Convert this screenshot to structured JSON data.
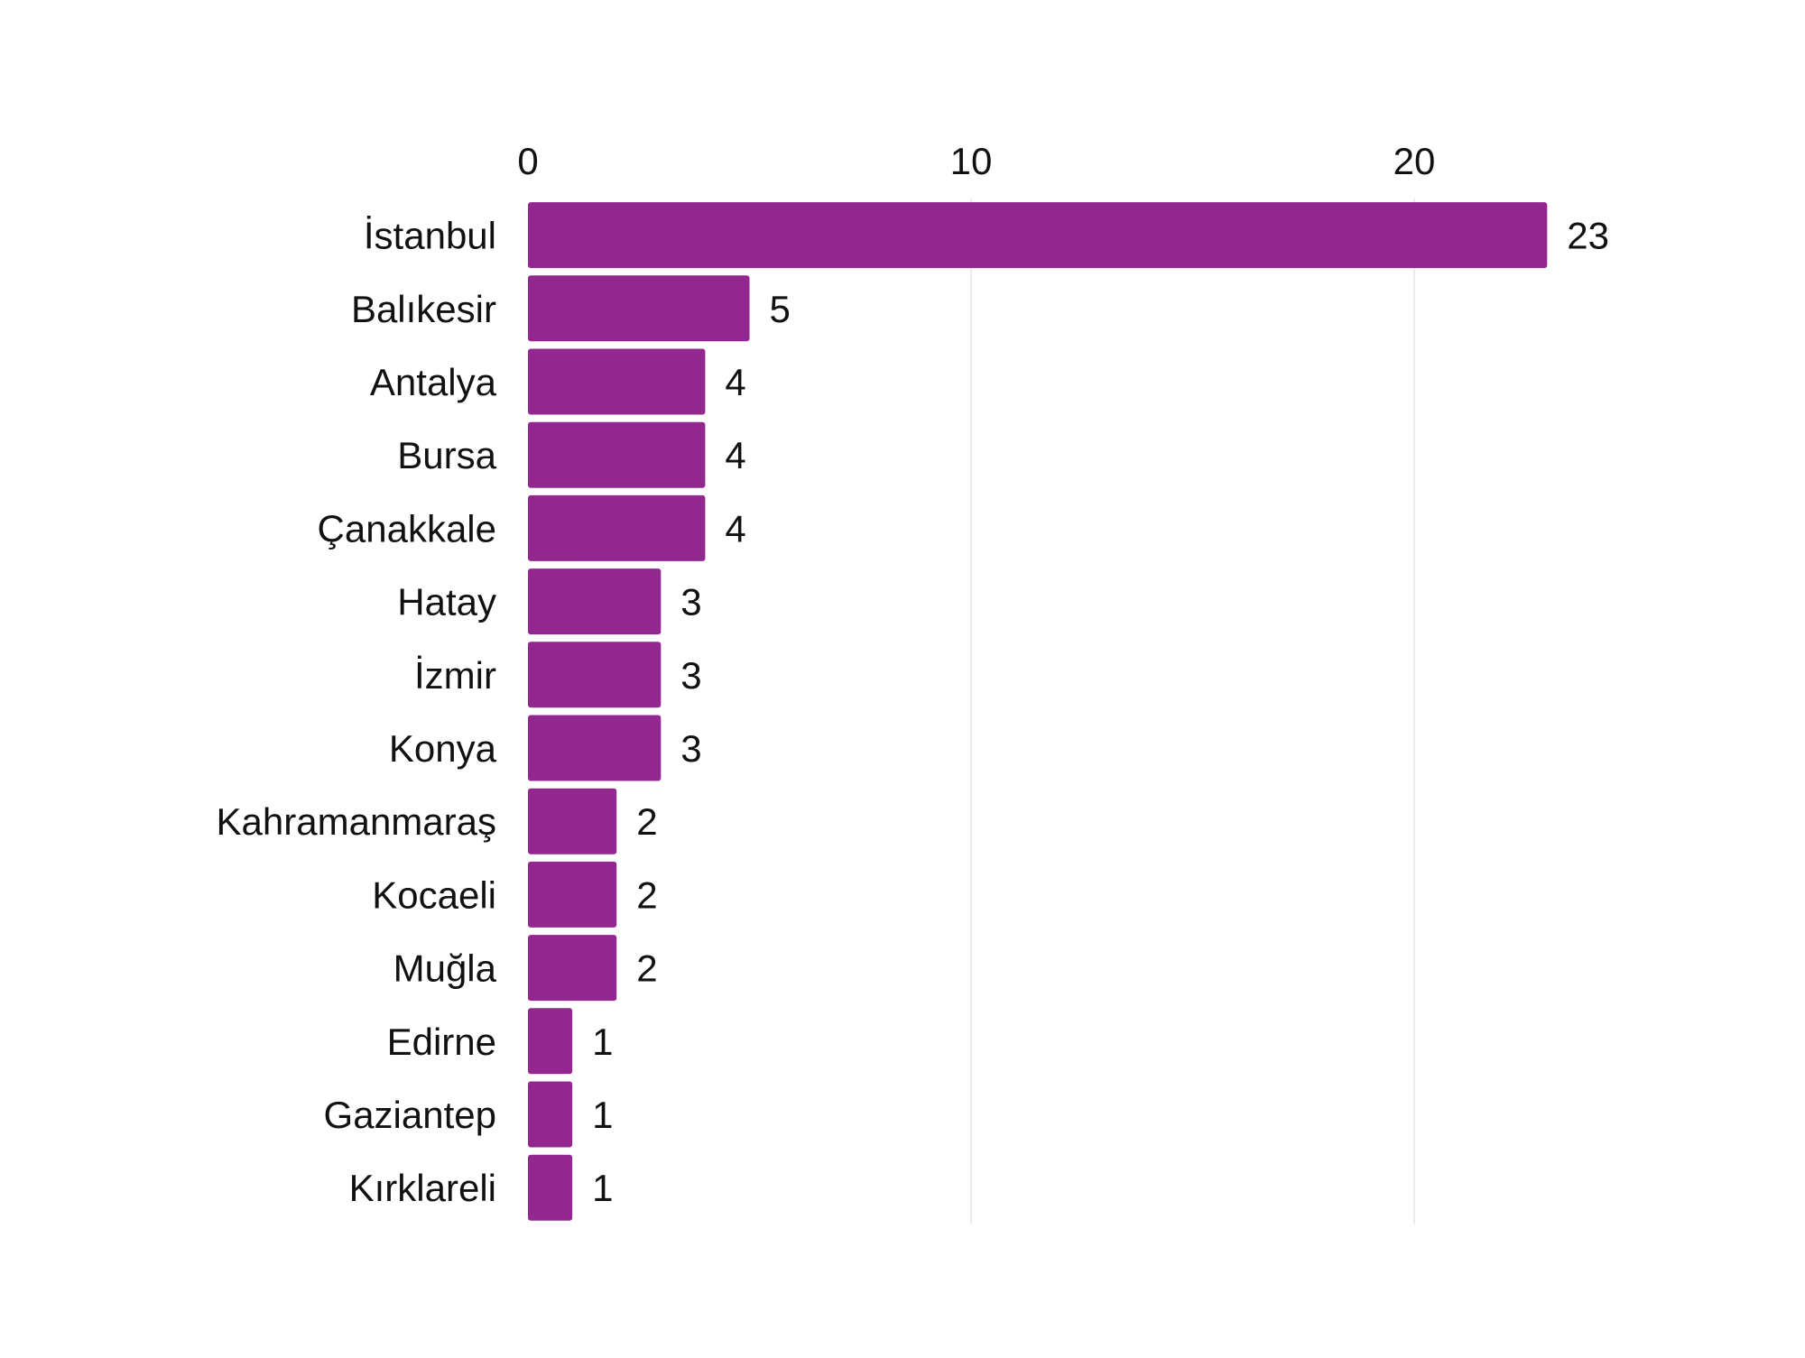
{
  "chart_data": {
    "type": "bar",
    "orientation": "horizontal",
    "title": "",
    "xlabel": "",
    "ylabel": "",
    "categories": [
      "İstanbul",
      "Balıkesir",
      "Antalya",
      "Bursa",
      "Çanakkale",
      "Hatay",
      "İzmir",
      "Konya",
      "Kahramanmaraş",
      "Kocaeli",
      "Muğla",
      "Edirne",
      "Gaziantep",
      "Kırklareli"
    ],
    "values": [
      23,
      5,
      4,
      4,
      4,
      3,
      3,
      3,
      2,
      2,
      2,
      1,
      1,
      1
    ],
    "xlim": [
      0,
      23
    ],
    "x_ticks": [
      0,
      10,
      20
    ],
    "x_axis_position": "top",
    "grid": true,
    "data_labels": true,
    "legend": "none",
    "bar_color": "#92278f"
  }
}
